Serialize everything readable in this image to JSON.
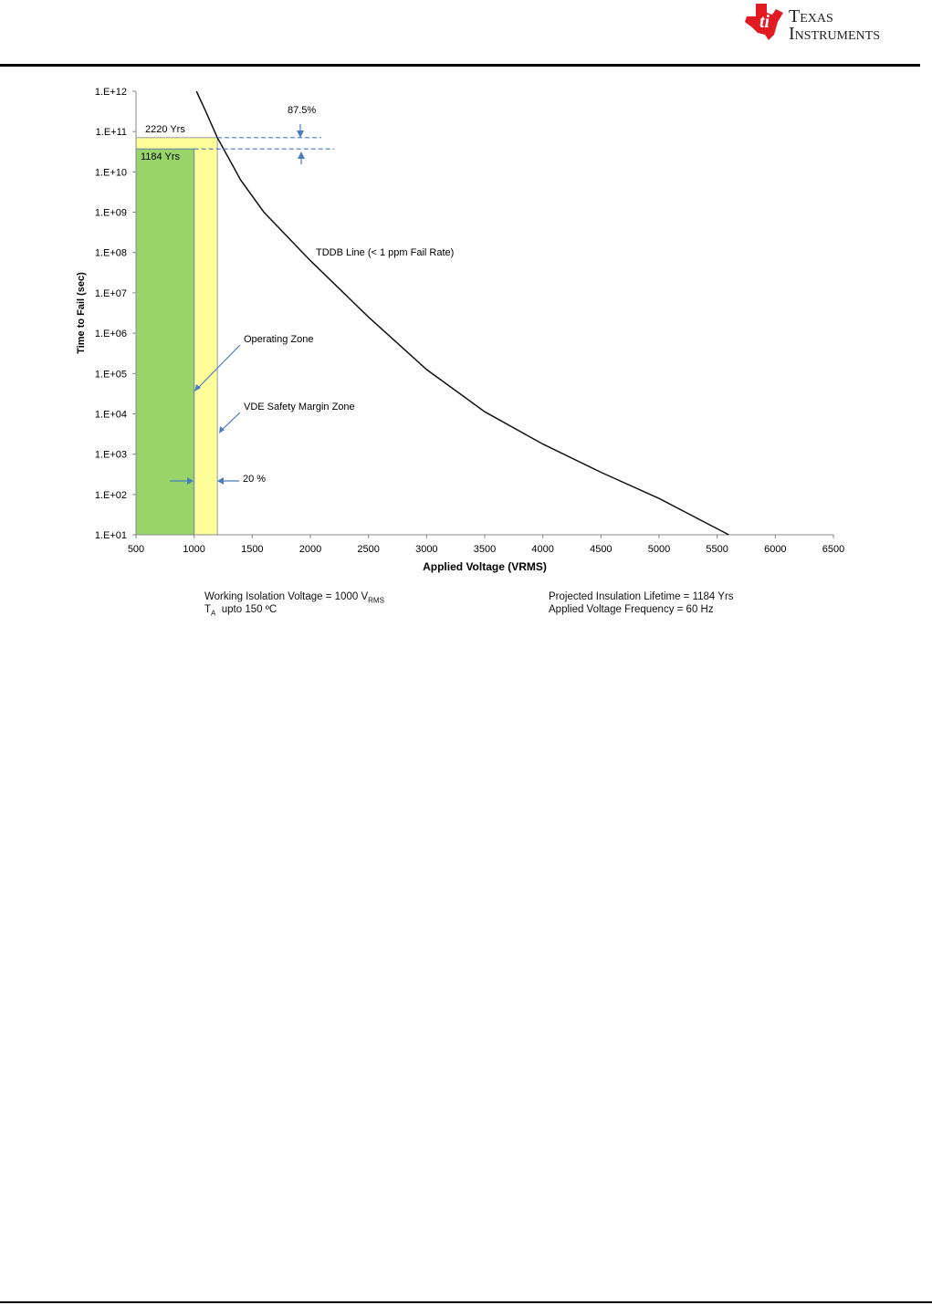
{
  "header": {
    "brand_line1": "Texas",
    "brand_line2": "Instruments"
  },
  "chart_data": {
    "type": "line",
    "xlabel": "Applied Voltage (VRMS)",
    "ylabel": "Time to Fail (sec)",
    "xlim": [
      500,
      6500
    ],
    "xticks": [
      500,
      1000,
      1500,
      2000,
      2500,
      3000,
      3500,
      4000,
      4500,
      5000,
      5500,
      6000,
      6500
    ],
    "ylim_log10": [
      1,
      12
    ],
    "yticks": [
      "1.E+01",
      "1.E+02",
      "1.E+03",
      "1.E+04",
      "1.E+05",
      "1.E+06",
      "1.E+07",
      "1.E+08",
      "1.E+09",
      "1.E+10",
      "1.E+11",
      "1.E+12"
    ],
    "series": [
      {
        "name": "TDDB Line (< 1 ppm Fail Rate)",
        "x": [
          1020,
          1100,
          1200,
          1400,
          1600,
          2000,
          2500,
          3000,
          3500,
          4000,
          4500,
          5000,
          5600
        ],
        "log10_y": [
          12,
          11.5,
          10.85,
          9.8,
          9.0,
          7.8,
          6.4,
          5.1,
          4.05,
          3.25,
          2.55,
          1.9,
          1.0
        ]
      }
    ],
    "zones": [
      {
        "name": "VDE Safety Margin Zone",
        "x": [
          500,
          1200
        ],
        "log10_top": 10.85,
        "label": "2220 Yrs",
        "color": "#ffff99"
      },
      {
        "name": "Operating Zone",
        "x": [
          500,
          1000
        ],
        "log10_top": 10.57,
        "label": "1184 Yrs",
        "color": "#99d46a"
      }
    ],
    "annotations": {
      "tddb": "TDDB Line (< 1 ppm Fail Rate)",
      "operating": "Operating  Zone",
      "vde": "VDE Safety Margin Zone",
      "margin": "20 %",
      "ratio": "87.5%"
    }
  },
  "notes": {
    "left1": "Working Isolation Voltage = 1000 V",
    "left1_sub": "RMS",
    "left2_a": "T",
    "left2_sub": "A",
    "left2_b": "  upto 150 ºC",
    "right1": "Projected Insulation  Lifetime = 1184 Yrs",
    "right2": "Applied Voltage Frequency = 60 Hz"
  }
}
